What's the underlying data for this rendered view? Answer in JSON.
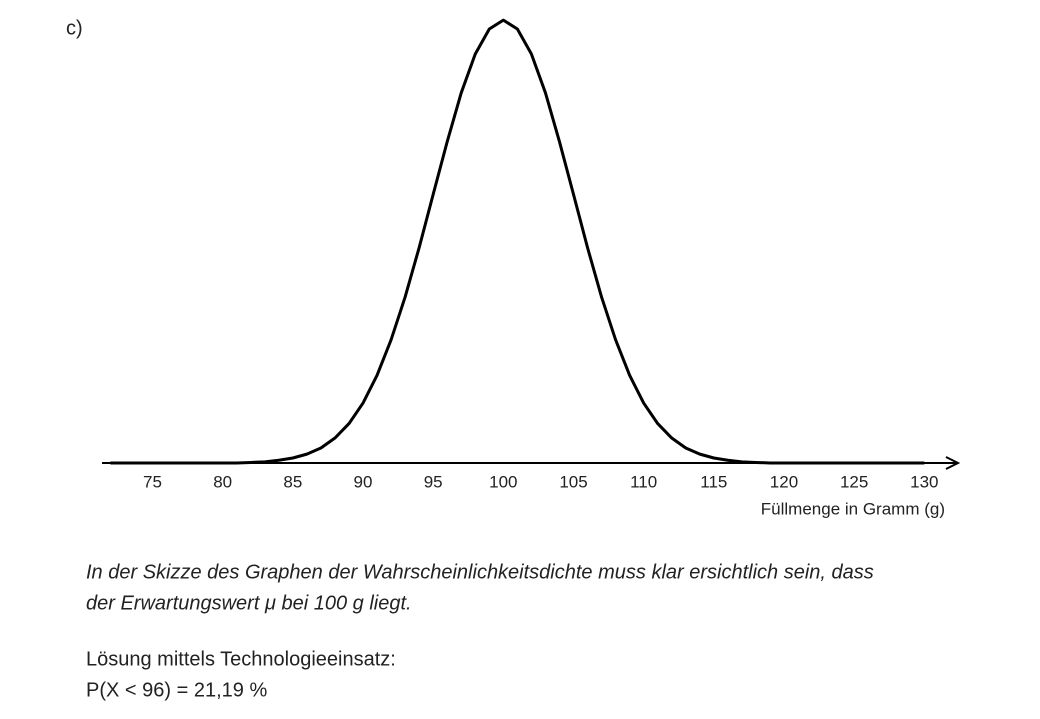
{
  "label": "c)",
  "chart_data": {
    "type": "line",
    "xlabel": "Füllmenge in Gramm (g)",
    "x": [
      72,
      80,
      81,
      82,
      83,
      84,
      85,
      86,
      87,
      88,
      89,
      90,
      91,
      92,
      93,
      94,
      95,
      96,
      97,
      98,
      99,
      100,
      101,
      102,
      103,
      104,
      105,
      106,
      107,
      108,
      109,
      110,
      111,
      112,
      113,
      114,
      115,
      116,
      117,
      118,
      119,
      120,
      130
    ],
    "values": [
      0,
      0,
      0,
      0.0001,
      0.0002,
      0.0005,
      0.0009,
      0.0016,
      0.0027,
      0.0045,
      0.0071,
      0.0108,
      0.0158,
      0.0222,
      0.0299,
      0.0388,
      0.0484,
      0.0579,
      0.0667,
      0.0737,
      0.0782,
      0.0798,
      0.0782,
      0.0737,
      0.0667,
      0.0579,
      0.0484,
      0.0388,
      0.0299,
      0.0222,
      0.0158,
      0.0108,
      0.0071,
      0.0045,
      0.0027,
      0.0016,
      0.0009,
      0.0005,
      0.0002,
      0.0001,
      0,
      0,
      0
    ],
    "color": "#000000",
    "xlim": [
      71.4,
      132.4
    ],
    "ylim": [
      0,
      0.08
    ],
    "xticks": [
      75,
      80,
      85,
      90,
      95,
      100,
      105,
      110,
      115,
      120,
      125,
      130
    ]
  },
  "note": [
    "In der Skizze des Graphen der Wahrscheinlichkeitsdichte muss klar ersichtlich sein, dass",
    "der Erwartungswert μ bei 100 g liegt."
  ],
  "solution": [
    "Lösung mittels Technologieeinsatz:",
    "P(X < 96) = 21,19 %"
  ]
}
